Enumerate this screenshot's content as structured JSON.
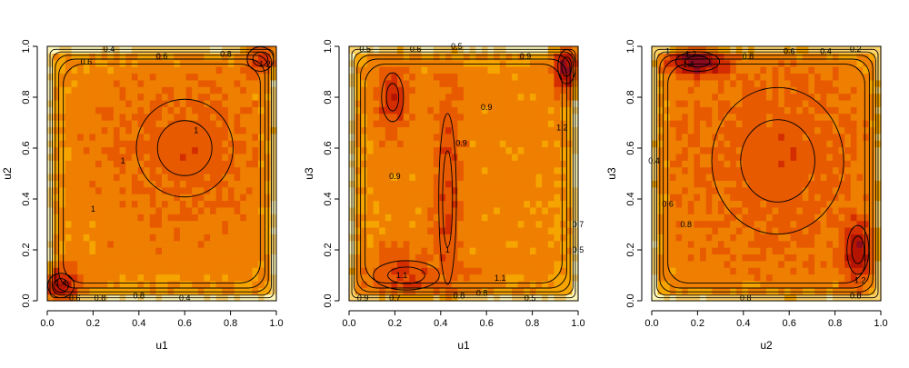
{
  "chart_data": [
    {
      "type": "heatmap",
      "xlabel": "u1",
      "ylabel": "u2",
      "xlim": [
        0,
        1
      ],
      "ylim": [
        0,
        1
      ],
      "ticks": [
        "0.0",
        "0.2",
        "0.4",
        "0.6",
        "0.8",
        "1.0"
      ],
      "colormap": [
        "#fff6b8",
        "#fcd36a",
        "#f6a400",
        "#ef7f00",
        "#e85a00",
        "#d42e00",
        "#b51400",
        "#8c0b1e"
      ],
      "density_peaks": [
        {
          "x": 0.06,
          "y": 0.06,
          "level": 1.4,
          "sx": 0.06,
          "sy": 0.05
        },
        {
          "x": 0.93,
          "y": 0.95,
          "level": 1.2,
          "sx": 0.06,
          "sy": 0.05
        },
        {
          "x": 0.6,
          "y": 0.6,
          "level": 1.0,
          "sx": 0.22,
          "sy": 0.2
        }
      ],
      "contour_labels": [
        {
          "text": "0.4",
          "x": 0.27,
          "y": 0.99
        },
        {
          "text": "0.6",
          "x": 0.17,
          "y": 0.94
        },
        {
          "text": "0.6",
          "x": 0.5,
          "y": 0.96
        },
        {
          "text": "0.8",
          "x": 0.78,
          "y": 0.97
        },
        {
          "text": "1.2",
          "x": 0.95,
          "y": 0.93
        },
        {
          "text": "1",
          "x": 0.65,
          "y": 0.67
        },
        {
          "text": "1",
          "x": 0.33,
          "y": 0.55
        },
        {
          "text": "1",
          "x": 0.2,
          "y": 0.36
        },
        {
          "text": "0.8",
          "x": 0.4,
          "y": 0.02
        },
        {
          "text": "0.6",
          "x": 0.12,
          "y": 0.01
        },
        {
          "text": "0.4",
          "x": 0.6,
          "y": 0.01
        },
        {
          "text": "0.8",
          "x": 0.23,
          "y": 0.01
        },
        {
          "text": "1.4",
          "x": 0.06,
          "y": 0.07
        }
      ]
    },
    {
      "type": "heatmap",
      "xlabel": "u1",
      "ylabel": "u3",
      "xlim": [
        0,
        1
      ],
      "ylim": [
        0,
        1
      ],
      "ticks": [
        "0.0",
        "0.2",
        "0.4",
        "0.6",
        "0.8",
        "1.0"
      ],
      "colormap": [
        "#fff6b8",
        "#fcd36a",
        "#f6a400",
        "#ef7f00",
        "#e85a00",
        "#d42e00",
        "#b51400",
        "#8c0b1e"
      ],
      "density_peaks": [
        {
          "x": 0.95,
          "y": 0.92,
          "level": 1.5,
          "sx": 0.04,
          "sy": 0.07
        },
        {
          "x": 0.19,
          "y": 0.8,
          "level": 1.2,
          "sx": 0.05,
          "sy": 0.1
        },
        {
          "x": 0.43,
          "y": 0.4,
          "level": 1.1,
          "sx": 0.04,
          "sy": 0.35
        },
        {
          "x": 0.25,
          "y": 0.1,
          "level": 1.1,
          "sx": 0.15,
          "sy": 0.06
        }
      ],
      "contour_labels": [
        {
          "text": "0.5",
          "x": 0.07,
          "y": 0.99
        },
        {
          "text": "0.6",
          "x": 0.29,
          "y": 0.99
        },
        {
          "text": "0.5",
          "x": 0.47,
          "y": 1.0
        },
        {
          "text": "0.9",
          "x": 0.77,
          "y": 0.96
        },
        {
          "text": "0.9",
          "x": 0.6,
          "y": 0.76
        },
        {
          "text": "0.9",
          "x": 0.2,
          "y": 0.49
        },
        {
          "text": "1.2",
          "x": 0.93,
          "y": 0.68
        },
        {
          "text": "0.9",
          "x": 0.49,
          "y": 0.62
        },
        {
          "text": "1.1",
          "x": 0.23,
          "y": 0.1
        },
        {
          "text": "1.1",
          "x": 0.66,
          "y": 0.09
        },
        {
          "text": "0.8",
          "x": 0.48,
          "y": 0.02
        },
        {
          "text": "0.8",
          "x": 0.58,
          "y": 0.03
        },
        {
          "text": "0.5",
          "x": 0.79,
          "y": 0.01
        },
        {
          "text": "0.7",
          "x": 0.2,
          "y": 0.01
        },
        {
          "text": "0.9",
          "x": 0.06,
          "y": 0.01
        },
        {
          "text": "0.5",
          "x": 1.0,
          "y": 0.2
        },
        {
          "text": "0.7",
          "x": 1.0,
          "y": 0.3
        },
        {
          "text": "1",
          "x": 0.43,
          "y": 0.2
        }
      ]
    },
    {
      "type": "heatmap",
      "xlabel": "u2",
      "ylabel": "u3",
      "xlim": [
        0,
        1
      ],
      "ylim": [
        0,
        1
      ],
      "ticks": [
        "0.0",
        "0.2",
        "0.4",
        "0.6",
        "0.8",
        "1.0"
      ],
      "colormap": [
        "#fff6b8",
        "#fcd36a",
        "#f6a400",
        "#ef7f00",
        "#e85a00",
        "#d42e00",
        "#b51400",
        "#8c0b1e"
      ],
      "density_peaks": [
        {
          "x": 0.2,
          "y": 0.94,
          "level": 1.6,
          "sx": 0.1,
          "sy": 0.04
        },
        {
          "x": 0.9,
          "y": 0.2,
          "level": 1.4,
          "sx": 0.05,
          "sy": 0.1
        },
        {
          "x": 0.55,
          "y": 0.55,
          "level": 1.0,
          "sx": 0.3,
          "sy": 0.3
        }
      ],
      "contour_labels": [
        {
          "text": "1",
          "x": 0.07,
          "y": 0.98
        },
        {
          "text": "1.2",
          "x": 0.17,
          "y": 0.97
        },
        {
          "text": "1.4",
          "x": 0.16,
          "y": 0.93
        },
        {
          "text": "0.8",
          "x": 0.42,
          "y": 0.96
        },
        {
          "text": "0.6",
          "x": 0.6,
          "y": 0.98
        },
        {
          "text": "0.4",
          "x": 0.76,
          "y": 0.98
        },
        {
          "text": "0.2",
          "x": 0.89,
          "y": 0.99
        },
        {
          "text": "0.4",
          "x": 0.01,
          "y": 0.55
        },
        {
          "text": "0.6",
          "x": 0.07,
          "y": 0.38
        },
        {
          "text": "0.8",
          "x": 0.15,
          "y": 0.3
        },
        {
          "text": "1.2",
          "x": 0.91,
          "y": 0.08
        },
        {
          "text": "0.8",
          "x": 0.41,
          "y": 0.01
        },
        {
          "text": "0.8",
          "x": 0.89,
          "y": 0.02
        }
      ]
    }
  ]
}
